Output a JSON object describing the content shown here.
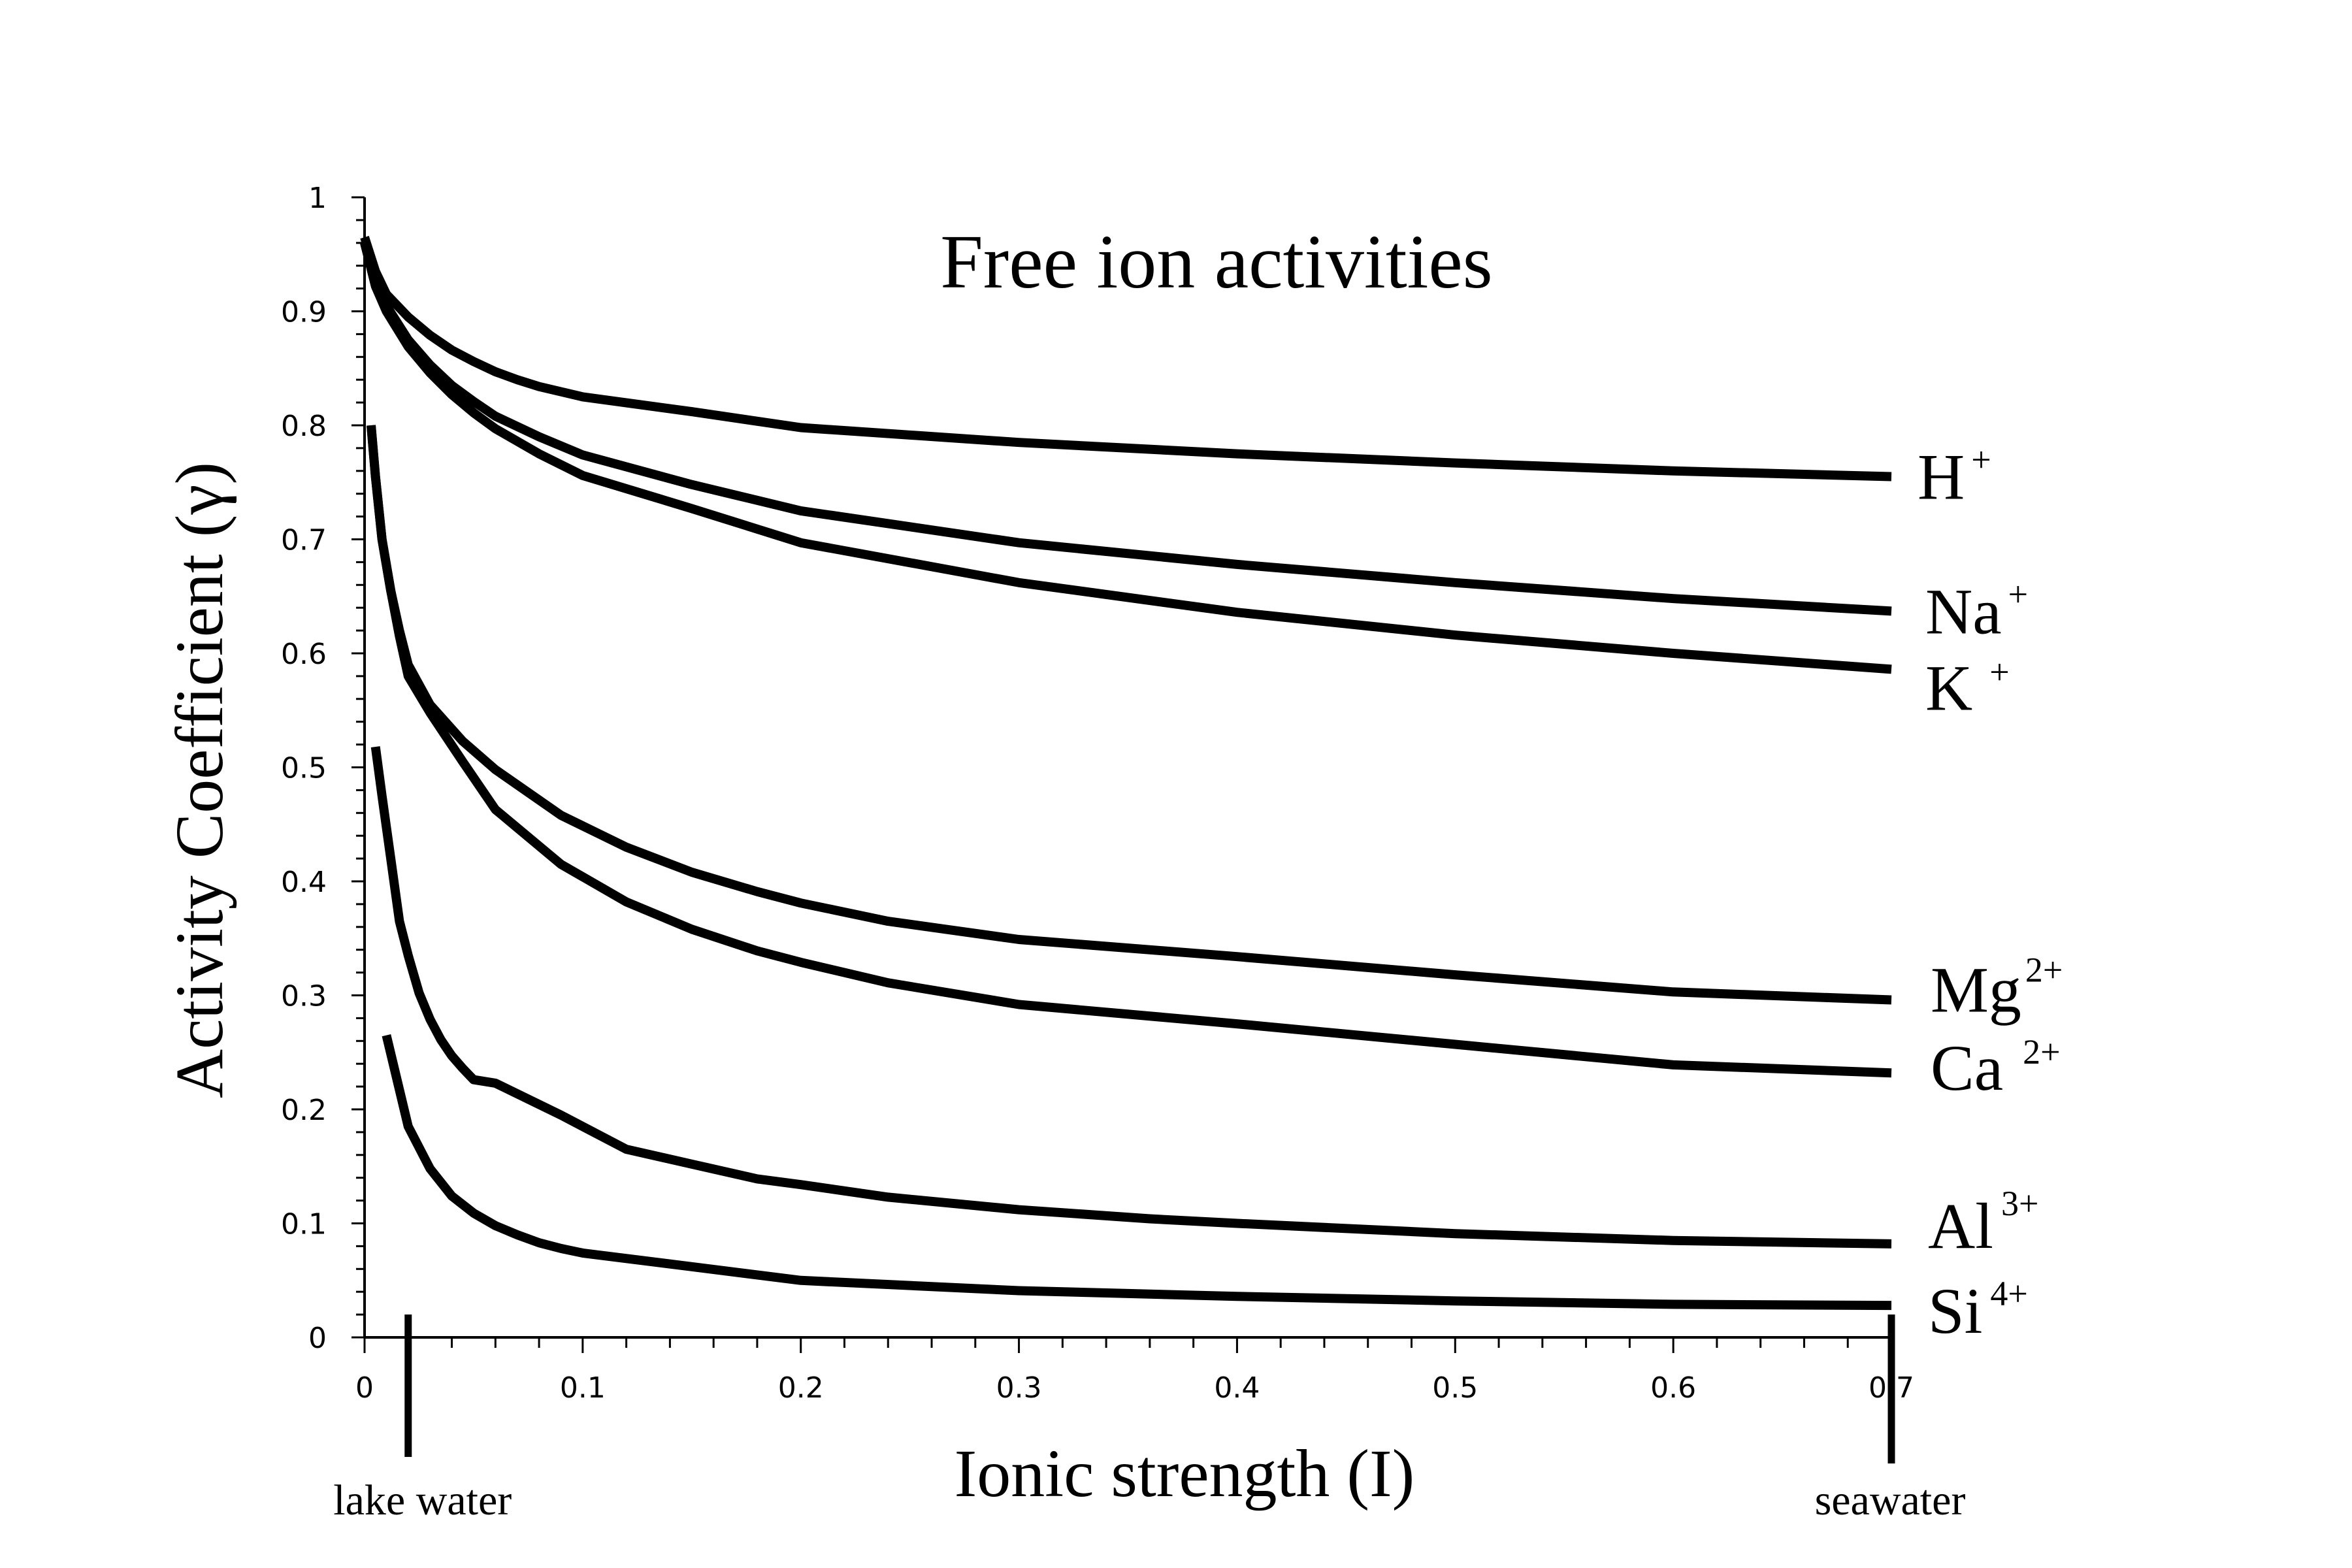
{
  "chart_data": {
    "type": "line",
    "title": "Free ion activities",
    "xlabel": "Ionic strength (I)",
    "ylabel": "Activity Coefficient (γ)",
    "xlim": [
      0,
      0.7
    ],
    "ylim": [
      0,
      1
    ],
    "xticks": [
      "0",
      "0.1",
      "0.2",
      "0.3",
      "0.4",
      "0.5",
      "0.6",
      "0.7"
    ],
    "yticks": [
      "0",
      "0.1",
      "0.2",
      "0.3",
      "0.4",
      "0.5",
      "0.6",
      "0.7",
      "0.8",
      "0.9",
      "1"
    ],
    "grid": false,
    "legend": "none (labels at line ends)",
    "series": [
      {
        "name": "H",
        "charge": "+",
        "color": "#000000",
        "x": [
          0,
          0.005,
          0.01,
          0.02,
          0.03,
          0.04,
          0.05,
          0.06,
          0.07,
          0.08,
          0.1,
          0.15,
          0.2,
          0.3,
          0.4,
          0.5,
          0.6,
          0.7
        ],
        "y": [
          0.965,
          0.935,
          0.915,
          0.895,
          0.879,
          0.866,
          0.856,
          0.847,
          0.84,
          0.834,
          0.825,
          0.812,
          0.798,
          0.785,
          0.775,
          0.767,
          0.76,
          0.755
        ]
      },
      {
        "name": "Na",
        "charge": "+",
        "color": "#000000",
        "x": [
          0,
          0.005,
          0.01,
          0.02,
          0.03,
          0.04,
          0.05,
          0.06,
          0.08,
          0.1,
          0.15,
          0.2,
          0.3,
          0.4,
          0.5,
          0.6,
          0.7
        ],
        "y": [
          0.96,
          0.925,
          0.905,
          0.875,
          0.853,
          0.835,
          0.821,
          0.808,
          0.79,
          0.774,
          0.748,
          0.725,
          0.697,
          0.678,
          0.662,
          0.648,
          0.637
        ]
      },
      {
        "name": "K",
        "charge": "+",
        "color": "#000000",
        "x": [
          0,
          0.005,
          0.01,
          0.02,
          0.03,
          0.04,
          0.05,
          0.06,
          0.08,
          0.1,
          0.15,
          0.2,
          0.3,
          0.4,
          0.5,
          0.6,
          0.7
        ],
        "y": [
          0.96,
          0.922,
          0.9,
          0.869,
          0.846,
          0.827,
          0.811,
          0.797,
          0.775,
          0.756,
          0.727,
          0.697,
          0.662,
          0.636,
          0.616,
          0.6,
          0.586
        ]
      },
      {
        "name": "Mg",
        "charge": "2+",
        "color": "#000000",
        "x": [
          0.003,
          0.005,
          0.008,
          0.012,
          0.016,
          0.02,
          0.03,
          0.045,
          0.06,
          0.09,
          0.12,
          0.15,
          0.18,
          0.2,
          0.24,
          0.3,
          0.4,
          0.5,
          0.6,
          0.7
        ],
        "y": [
          0.8,
          0.755,
          0.7,
          0.655,
          0.62,
          0.59,
          0.555,
          0.523,
          0.498,
          0.458,
          0.43,
          0.408,
          0.391,
          0.381,
          0.365,
          0.349,
          0.334,
          0.318,
          0.303,
          0.296
        ]
      },
      {
        "name": "Ca",
        "charge": "2+",
        "color": "#000000",
        "x": [
          0.003,
          0.005,
          0.008,
          0.012,
          0.016,
          0.02,
          0.03,
          0.045,
          0.06,
          0.09,
          0.12,
          0.15,
          0.18,
          0.2,
          0.24,
          0.3,
          0.4,
          0.5,
          0.6,
          0.7
        ],
        "y": [
          0.8,
          0.755,
          0.7,
          0.655,
          0.615,
          0.58,
          0.548,
          0.505,
          0.463,
          0.415,
          0.382,
          0.358,
          0.339,
          0.329,
          0.311,
          0.292,
          0.275,
          0.257,
          0.239,
          0.232
        ]
      },
      {
        "name": "Al",
        "charge": "3+",
        "color": "#000000",
        "x": [
          0.005,
          0.008,
          0.012,
          0.016,
          0.02,
          0.025,
          0.03,
          0.035,
          0.04,
          0.045,
          0.05,
          0.06,
          0.09,
          0.12,
          0.15,
          0.18,
          0.2,
          0.24,
          0.3,
          0.36,
          0.4,
          0.5,
          0.6,
          0.7
        ],
        "y": [
          0.518,
          0.475,
          0.42,
          0.365,
          0.335,
          0.302,
          0.279,
          0.261,
          0.247,
          0.236,
          0.226,
          0.223,
          0.195,
          0.165,
          0.152,
          0.139,
          0.134,
          0.123,
          0.112,
          0.104,
          0.1,
          0.091,
          0.085,
          0.082
        ]
      },
      {
        "name": "Si",
        "charge": "4+",
        "color": "#000000",
        "x": [
          0.01,
          0.02,
          0.03,
          0.04,
          0.05,
          0.06,
          0.07,
          0.08,
          0.09,
          0.1,
          0.15,
          0.2,
          0.3,
          0.4,
          0.5,
          0.6,
          0.7
        ],
        "y": [
          0.265,
          0.185,
          0.148,
          0.124,
          0.109,
          0.098,
          0.09,
          0.083,
          0.078,
          0.074,
          0.062,
          0.05,
          0.041,
          0.036,
          0.032,
          0.029,
          0.028
        ]
      }
    ],
    "annotations": [
      {
        "text": "lake water",
        "x": 0.02
      },
      {
        "text": "seawater",
        "x": 0.7
      }
    ]
  }
}
